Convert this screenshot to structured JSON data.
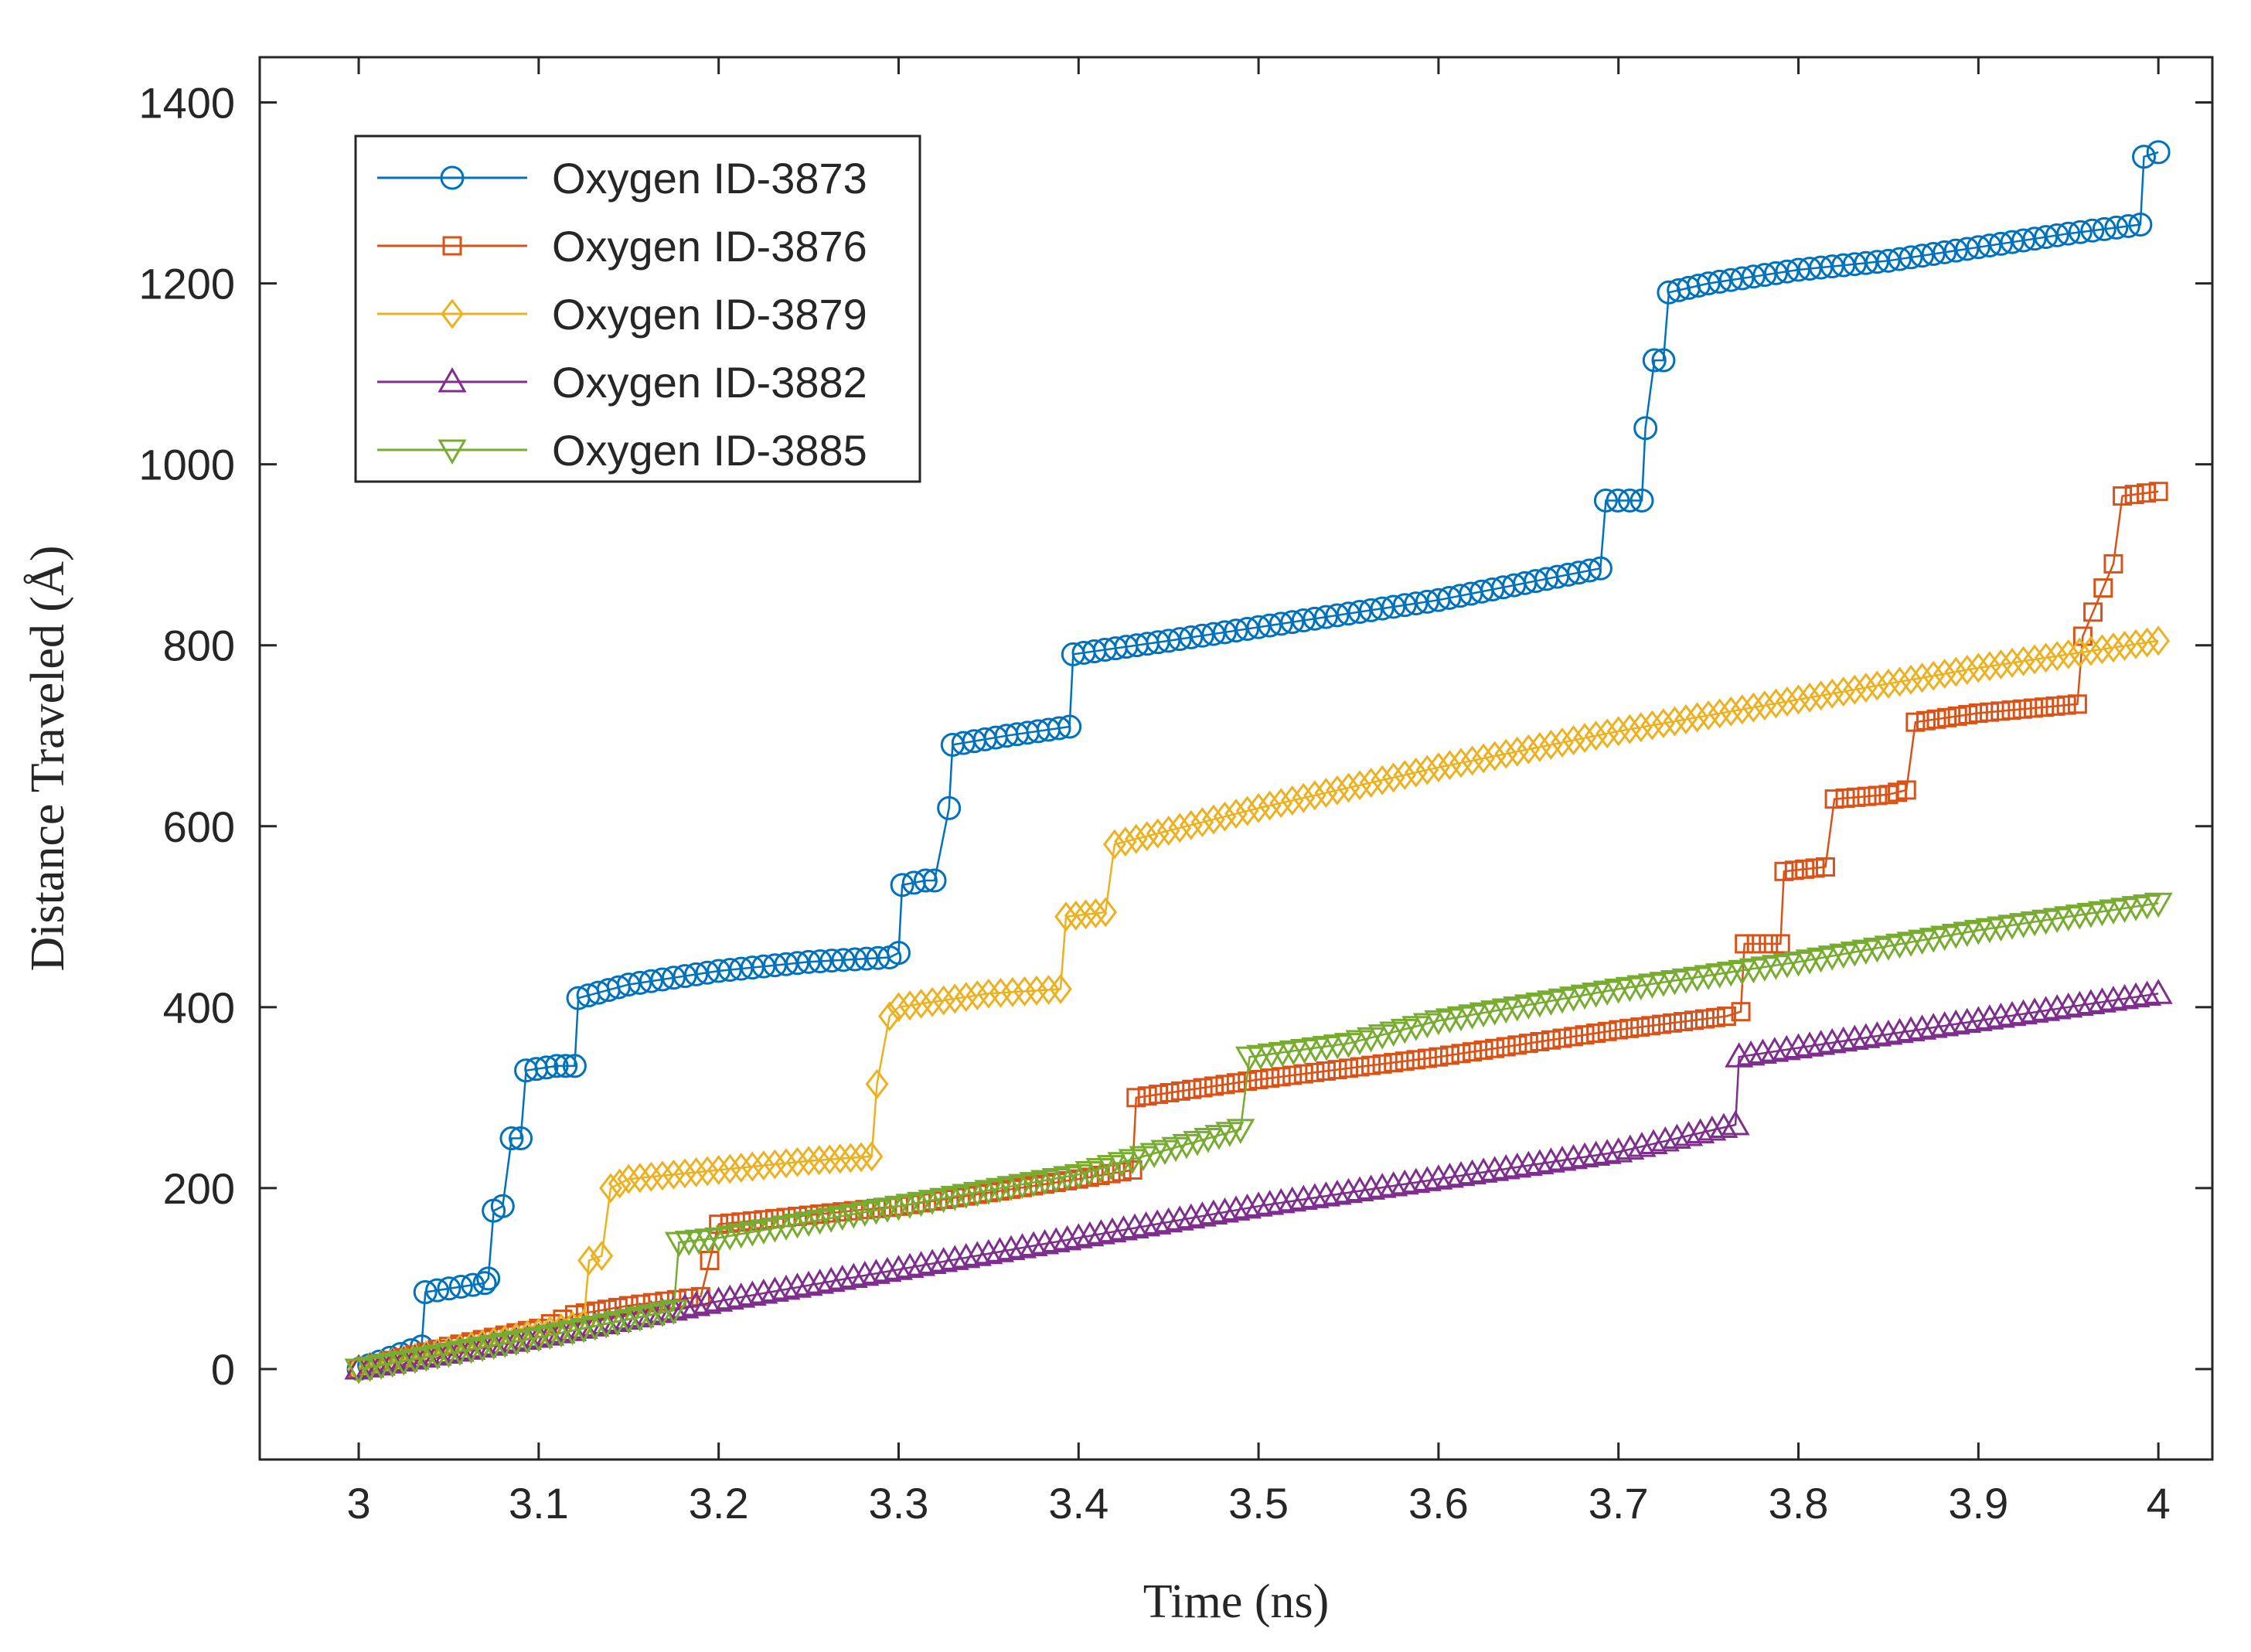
{
  "chart_data": {
    "type": "line",
    "title": "",
    "xlabel": "Time (ns)",
    "ylabel": "Distance Traveled (Å)",
    "xlim": [
      2.945,
      4.03
    ],
    "ylim": [
      -100,
      1450
    ],
    "xticks": [
      3,
      3.1,
      3.2,
      3.3,
      3.4,
      3.5,
      3.6,
      3.7,
      3.8,
      3.9,
      4
    ],
    "xtick_labels": [
      "3",
      "3.1",
      "3.2",
      "3.3",
      "3.4",
      "3.5",
      "3.6",
      "3.7",
      "3.8",
      "3.9",
      "4"
    ],
    "yticks": [
      0,
      200,
      400,
      600,
      800,
      1000,
      1200,
      1400
    ],
    "ytick_labels": [
      "0",
      "200",
      "400",
      "600",
      "800",
      "1000",
      "1200",
      "1400"
    ],
    "grid": false,
    "legend_position": "top-left",
    "series": [
      {
        "name": "Oxygen ID-3873",
        "color": "#0072BD",
        "marker": "circle",
        "x": [
          3.0,
          3.035,
          3.037,
          3.07,
          3.072,
          3.075,
          3.08,
          3.085,
          3.09,
          3.093,
          3.11,
          3.12,
          3.122,
          3.15,
          3.2,
          3.25,
          3.295,
          3.3,
          3.302,
          3.315,
          3.32,
          3.328,
          3.33,
          3.36,
          3.395,
          3.397,
          3.45,
          3.5,
          3.6,
          3.69,
          3.693,
          3.713,
          3.715,
          3.72,
          3.725,
          3.728,
          3.75,
          3.8,
          3.85,
          3.9,
          3.95,
          3.99,
          3.992,
          4.0
        ],
        "y": [
          0,
          25,
          85,
          95,
          100,
          175,
          180,
          255,
          255,
          330,
          335,
          335,
          410,
          425,
          440,
          450,
          455,
          460,
          535,
          540,
          540,
          620,
          690,
          700,
          710,
          790,
          805,
          820,
          850,
          885,
          960,
          960,
          1040,
          1115,
          1115,
          1190,
          1200,
          1215,
          1225,
          1240,
          1255,
          1265,
          1340,
          1345
        ]
      },
      {
        "name": "Oxygen ID-3876",
        "color": "#D95319",
        "marker": "square",
        "x": [
          3.0,
          3.05,
          3.1,
          3.12,
          3.15,
          3.19,
          3.2,
          3.25,
          3.3,
          3.35,
          3.4,
          3.43,
          3.432,
          3.5,
          3.6,
          3.7,
          3.76,
          3.768,
          3.77,
          3.79,
          3.792,
          3.815,
          3.82,
          3.85,
          3.86,
          3.865,
          3.9,
          3.955,
          3.958,
          3.975,
          3.98,
          4.0
        ],
        "y": [
          0,
          25,
          45,
          60,
          70,
          80,
          160,
          170,
          180,
          195,
          210,
          220,
          300,
          320,
          345,
          375,
          390,
          395,
          470,
          470,
          550,
          555,
          630,
          635,
          640,
          715,
          725,
          735,
          810,
          890,
          965,
          970
        ]
      },
      {
        "name": "Oxygen ID-3879",
        "color": "#EDB120",
        "marker": "diamond",
        "x": [
          3.0,
          3.05,
          3.1,
          3.125,
          3.128,
          3.135,
          3.14,
          3.15,
          3.2,
          3.25,
          3.285,
          3.288,
          3.295,
          3.3,
          3.35,
          3.39,
          3.393,
          3.415,
          3.42,
          3.45,
          3.5,
          3.6,
          3.7,
          3.8,
          3.9,
          4.0
        ],
        "y": [
          0,
          20,
          40,
          50,
          120,
          125,
          200,
          210,
          220,
          230,
          235,
          315,
          390,
          400,
          415,
          420,
          500,
          505,
          580,
          595,
          620,
          665,
          705,
          740,
          775,
          805
        ]
      },
      {
        "name": "Oxygen ID-3882",
        "color": "#7E2F8E",
        "marker": "triangle-up",
        "x": [
          3.0,
          3.1,
          3.2,
          3.3,
          3.4,
          3.5,
          3.6,
          3.7,
          3.765,
          3.767,
          3.8,
          3.9,
          4.0
        ],
        "y": [
          0,
          35,
          75,
          110,
          145,
          180,
          210,
          240,
          270,
          345,
          355,
          385,
          415
        ]
      },
      {
        "name": "Oxygen ID-3885",
        "color": "#77AC30",
        "marker": "triangle-down",
        "x": [
          3.0,
          3.1,
          3.175,
          3.178,
          3.2,
          3.3,
          3.4,
          3.49,
          3.495,
          3.55,
          3.6,
          3.7,
          3.8,
          3.9,
          4.0
        ],
        "y": [
          0,
          35,
          65,
          140,
          145,
          180,
          215,
          265,
          345,
          360,
          385,
          420,
          450,
          485,
          515
        ]
      }
    ]
  }
}
